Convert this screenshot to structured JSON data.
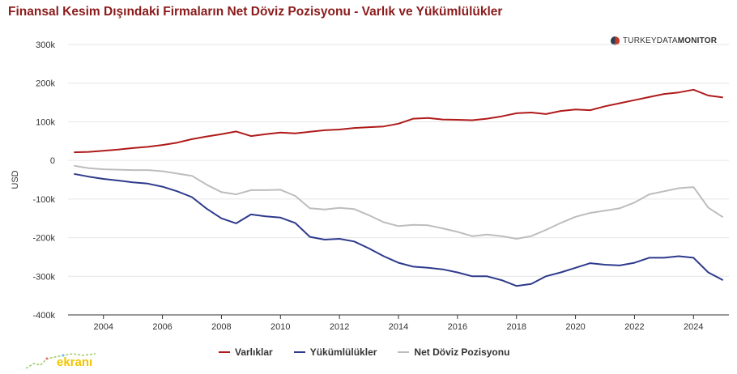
{
  "title": "Finansal Kesim Dışındaki Firmaların Net Döviz Pozisyonu - Varlık ve Yükümlülükler",
  "brand": {
    "prefix": "TURKEYDATA",
    "suffix": "MONITOR"
  },
  "watermark": {
    "text": "ekranı"
  },
  "colors": {
    "assets": "#b01a1a",
    "liabilities": "#2e3a8c",
    "net": "#bdbdbd",
    "grid": "#e6e6e6",
    "title": "#8b1a1a"
  },
  "chart_data": {
    "type": "line",
    "title": "Finansal Kesim Dışındaki Firmaların Net Döviz Pozisyonu - Varlık ve Yükümlülükler",
    "ylabel": "USD",
    "xlabel": "",
    "xlim": [
      2002.8,
      2025.2
    ],
    "ylim": [
      -400,
      300
    ],
    "y_unit": "k",
    "grid": true,
    "legend_position": "bottom",
    "x_ticks": [
      2004,
      2006,
      2008,
      2010,
      2012,
      2014,
      2016,
      2018,
      2020,
      2022,
      2024
    ],
    "x_tick_labels": [
      "2004",
      "2006",
      "2008",
      "2010",
      "2012",
      "2014",
      "2016",
      "2018",
      "2020",
      "2022",
      "2024"
    ],
    "y_ticks": [
      300,
      200,
      100,
      0,
      -100,
      -200,
      -300,
      -400
    ],
    "y_tick_labels": [
      "300k",
      "200k",
      "100k",
      "0",
      "-100k",
      "-200k",
      "-300k",
      "-400k"
    ],
    "x": [
      2003.0,
      2003.5,
      2004.0,
      2004.5,
      2005.0,
      2005.5,
      2006.0,
      2006.5,
      2007.0,
      2007.5,
      2008.0,
      2008.5,
      2009.0,
      2009.5,
      2010.0,
      2010.5,
      2011.0,
      2011.5,
      2012.0,
      2012.5,
      2013.0,
      2013.5,
      2014.0,
      2014.5,
      2015.0,
      2015.5,
      2016.0,
      2016.5,
      2017.0,
      2017.5,
      2018.0,
      2018.5,
      2019.0,
      2019.5,
      2020.0,
      2020.5,
      2021.0,
      2021.5,
      2022.0,
      2022.5,
      2023.0,
      2023.5,
      2024.0,
      2024.5,
      2025.0
    ],
    "series": [
      {
        "name": "Varlıklar",
        "values": [
          21,
          22,
          25,
          28,
          32,
          35,
          40,
          46,
          55,
          62,
          68,
          75,
          63,
          68,
          72,
          70,
          74,
          78,
          80,
          84,
          86,
          88,
          95,
          108,
          110,
          106,
          105,
          104,
          108,
          114,
          122,
          124,
          120,
          128,
          132,
          130,
          140,
          148,
          156,
          164,
          172,
          176,
          183,
          168,
          163
        ]
      },
      {
        "name": "Yükümlülükler",
        "values": [
          -35,
          -42,
          -48,
          -52,
          -57,
          -60,
          -68,
          -80,
          -95,
          -125,
          -150,
          -163,
          -140,
          -145,
          -148,
          -162,
          -198,
          -205,
          -203,
          -210,
          -228,
          -248,
          -265,
          -275,
          -278,
          -282,
          -290,
          -300,
          -300,
          -310,
          -325,
          -320,
          -300,
          -290,
          -278,
          -266,
          -270,
          -272,
          -265,
          -252,
          -252,
          -248,
          -252,
          -290,
          -310
        ]
      },
      {
        "name": "Net Döviz Pozisyonu",
        "values": [
          -14,
          -20,
          -23,
          -24,
          -25,
          -25,
          -28,
          -34,
          -40,
          -63,
          -82,
          -88,
          -77,
          -77,
          -76,
          -92,
          -124,
          -127,
          -123,
          -126,
          -142,
          -160,
          -170,
          -167,
          -168,
          -176,
          -185,
          -196,
          -192,
          -196,
          -203,
          -196,
          -180,
          -162,
          -146,
          -136,
          -130,
          -124,
          -109,
          -88,
          -80,
          -72,
          -69,
          -122,
          -147
        ]
      }
    ]
  }
}
